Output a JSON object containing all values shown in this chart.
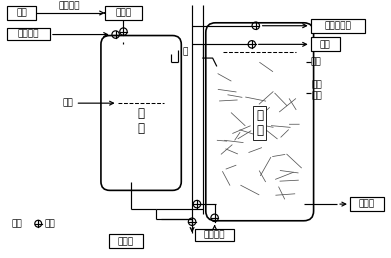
{
  "bg_color": "#ffffff",
  "lc": "#000000",
  "labels": {
    "haijian": "海棠",
    "yazhon": "压榨过滤",
    "haijian_zhi": "海棠汁",
    "jiaomu": "酵母菌液",
    "yemian": "液面",
    "shui": "水",
    "jia_guan": "甲\n罐",
    "yi_guan": "乙\n罐",
    "han_jun": "含菌培养液",
    "qiti": "气体",
    "pentou": "喷头",
    "chuahua": "刨花\n滤网",
    "zhu": "注：",
    "fameng": "阀门",
    "haijian_jiu": "海棠酒",
    "wujun": "无菌空气",
    "haijian_cu": "海棠醋"
  },
  "fs": 6.5,
  "fs2": 8.5
}
